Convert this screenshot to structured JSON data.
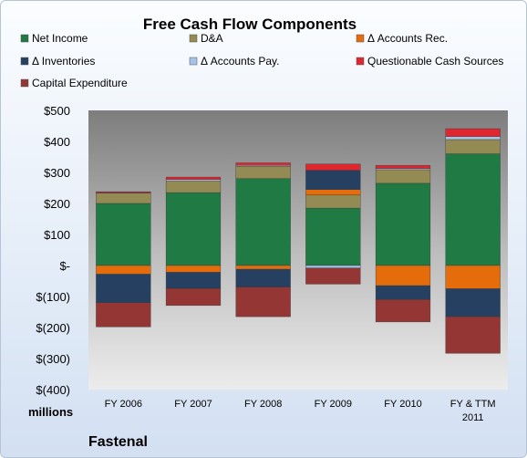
{
  "chart_data": {
    "type": "bar",
    "stacked": true,
    "title": "Free Cash Flow Components",
    "unit_label": "millions",
    "company": "Fastenal",
    "categories": [
      [
        "FY 2006"
      ],
      [
        "FY 2007"
      ],
      [
        "FY 2008"
      ],
      [
        "FY 2009"
      ],
      [
        "FY 2010"
      ],
      [
        "FY & TTM",
        "2011"
      ]
    ],
    "ylim": [
      -400,
      500
    ],
    "yticks": [
      -400,
      -300,
      -200,
      -100,
      0,
      100,
      200,
      300,
      400,
      500
    ],
    "ytick_labels": [
      "$(400)",
      "$(300)",
      "$(200)",
      "$(100)",
      "$-",
      "$100",
      "$200",
      "$300",
      "$400",
      "$500"
    ],
    "grid": false,
    "legend": "top",
    "series": [
      {
        "name": "Net Income",
        "color": "#1f7a43",
        "values": [
          200,
          235,
          280,
          185,
          265,
          360
        ]
      },
      {
        "name": "D&A",
        "color": "#948a54",
        "values": [
          33,
          37,
          40,
          42,
          44,
          46
        ]
      },
      {
        "name": "Δ Accounts Rec.",
        "color": "#e46c0a",
        "values": [
          -28,
          -22,
          -12,
          18,
          -65,
          -75
        ]
      },
      {
        "name": "Δ Inventories",
        "color": "#254061",
        "values": [
          -92,
          -52,
          -58,
          62,
          -45,
          -90
        ]
      },
      {
        "name": "Δ Accounts Pay.",
        "color": "#a6c2e6",
        "values": [
          2,
          5,
          3,
          -8,
          4,
          10
        ]
      },
      {
        "name": "Questionable Cash Sources",
        "color": "#e0262e",
        "values": [
          3,
          8,
          8,
          20,
          10,
          25
        ]
      },
      {
        "name": "Capital Expenditure",
        "color": "#943634",
        "values": [
          -78,
          -55,
          -95,
          -52,
          -72,
          -118
        ]
      }
    ]
  }
}
